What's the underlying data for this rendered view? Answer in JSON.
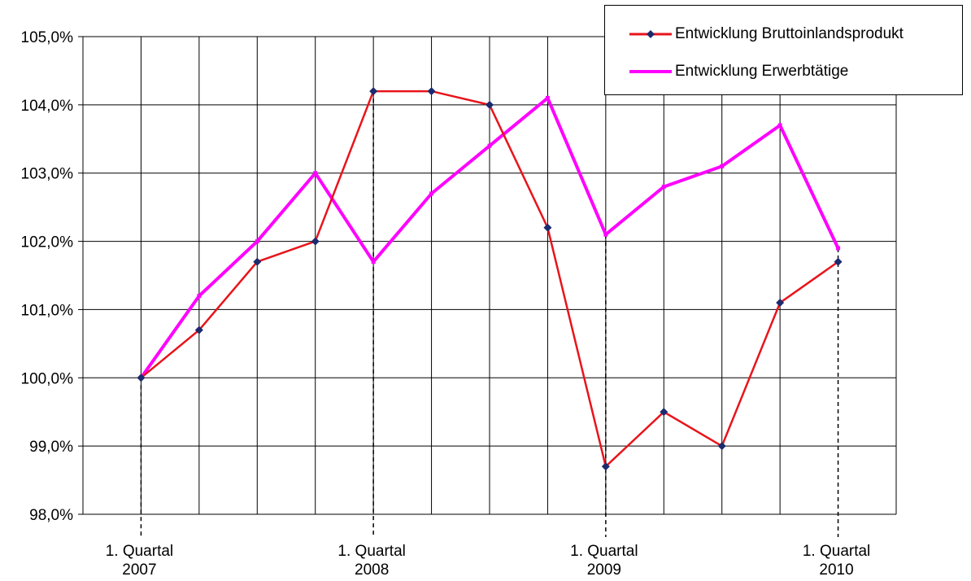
{
  "chart_data": {
    "type": "line",
    "x": [
      "1. Quartal 2007",
      "",
      "",
      "",
      "1. Quartal 2008",
      "",
      "",
      "",
      "1. Quartal 2009",
      "",
      "",
      "",
      "1. Quartal 2010"
    ],
    "x_tick_labels": [
      {
        "index": 0,
        "line1": "1. Quartal",
        "line2": "2007"
      },
      {
        "index": 4,
        "line1": "1. Quartal",
        "line2": "2008"
      },
      {
        "index": 8,
        "line1": "1. Quartal",
        "line2": "2009"
      },
      {
        "index": 12,
        "line1": "1. Quartal",
        "line2": "2010"
      }
    ],
    "y_ticks": [
      "98,0%",
      "99,0%",
      "100,0%",
      "101,0%",
      "102,0%",
      "103,0%",
      "104,0%",
      "105,0%"
    ],
    "ylim": [
      98,
      105
    ],
    "grid": true,
    "legend_position": "top-right",
    "series": [
      {
        "name": "Entwicklung Bruttoinlandsprodukt",
        "color": "#e8141b",
        "marker_color": "#1c2a6e",
        "values": [
          100.0,
          100.7,
          101.7,
          102.0,
          104.2,
          104.2,
          104.0,
          102.2,
          98.7,
          99.5,
          99.0,
          101.1,
          101.7
        ]
      },
      {
        "name": "Entwicklung Erwerbtätige",
        "color": "#ff00ff",
        "values": [
          100.0,
          101.2,
          102.0,
          103.0,
          101.7,
          102.7,
          103.4,
          104.1,
          102.1,
          102.8,
          103.1,
          103.7,
          101.9
        ]
      }
    ]
  }
}
